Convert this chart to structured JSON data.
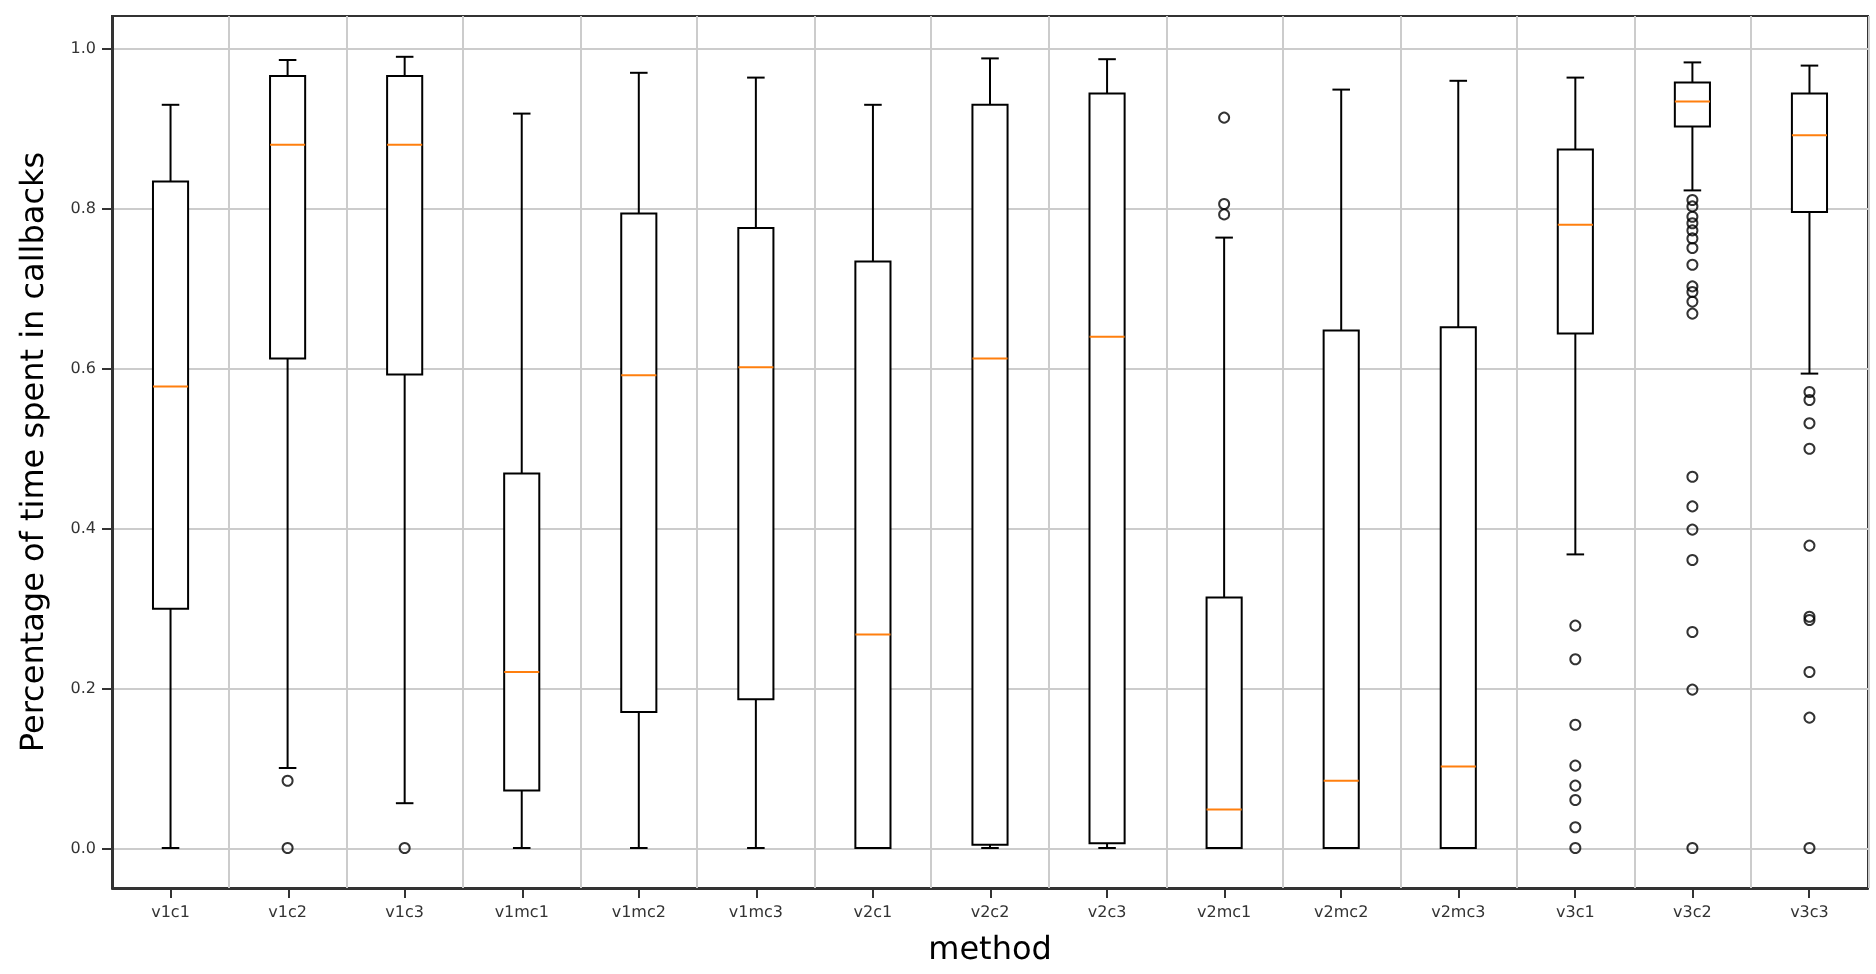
{
  "chart_data": {
    "type": "box",
    "xlabel": "method",
    "ylabel": "Percentage of time spent in callbacks",
    "categories": [
      "v1c1",
      "v1c2",
      "v1c3",
      "v1mc1",
      "v1mc2",
      "v1mc3",
      "v2c1",
      "v2c2",
      "v2c3",
      "v2mc1",
      "v2mc2",
      "v2mc3",
      "v3c1",
      "v3c2",
      "v3c3"
    ],
    "series": [
      {
        "color": "#000000",
        "boxes": [
          {
            "low": 0,
            "q1": 0.299,
            "median": 0.577,
            "q3": 0.833,
            "high": 0.929
          },
          {
            "low": 0.1,
            "q1": 0.612,
            "median": 0.879,
            "q3": 0.965,
            "high": 0.985,
            "outliers": [
              0.084,
              0
            ]
          },
          {
            "low": 0.056,
            "q1": 0.592,
            "median": 0.879,
            "q3": 0.965,
            "high": 0.989,
            "outliers": [
              0
            ]
          },
          {
            "low": 0,
            "q1": 0.072,
            "median": 0.22,
            "q3": 0.468,
            "high": 0.918
          },
          {
            "low": 0,
            "q1": 0.17,
            "median": 0.591,
            "q3": 0.793,
            "high": 0.969
          },
          {
            "low": 0,
            "q1": 0.186,
            "median": 0.601,
            "q3": 0.775,
            "high": 0.963
          },
          {
            "low": 0,
            "q1": 0,
            "median": 0.267,
            "q3": 0.733,
            "high": 0.929
          },
          {
            "low": 0,
            "q1": 0.004,
            "median": 0.612,
            "q3": 0.929,
            "high": 0.987
          },
          {
            "low": 0,
            "q1": 0.006,
            "median": 0.639,
            "q3": 0.943,
            "high": 0.986
          },
          {
            "low": 0,
            "q1": 0,
            "median": 0.048,
            "q3": 0.313,
            "high": 0.763,
            "outliers": [
              0.913,
              0.805,
              0.792
            ]
          },
          {
            "low": 0,
            "q1": 0,
            "median": 0.084,
            "q3": 0.647,
            "high": 0.948
          },
          {
            "low": 0,
            "q1": 0,
            "median": 0.102,
            "q3": 0.651,
            "high": 0.959
          },
          {
            "low": 0.367,
            "q1": 0.643,
            "median": 0.779,
            "q3": 0.873,
            "high": 0.963,
            "outliers": [
              0.278,
              0.236,
              0.154,
              0.103,
              0.078,
              0.06,
              0.026,
              0
            ]
          },
          {
            "low": 0.822,
            "q1": 0.902,
            "median": 0.933,
            "q3": 0.957,
            "high": 0.982,
            "outliers": [
              0.81,
              0.802,
              0.789,
              0.781,
              0.772,
              0.762,
              0.75,
              0.729,
              0.702,
              0.695,
              0.683,
              0.668,
              0.464,
              0.427,
              0.398,
              0.36,
              0.27,
              0.198,
              0
            ]
          },
          {
            "low": 0.593,
            "q1": 0.795,
            "median": 0.891,
            "q3": 0.943,
            "high": 0.978,
            "outliers": [
              0.57,
              0.56,
              0.531,
              0.499,
              0.378,
              0.289,
              0.285,
              0.22,
              0.163,
              0
            ]
          }
        ]
      }
    ],
    "ylim": [
      -0.05,
      1.04
    ],
    "yticks": [
      {
        "value": 0,
        "label": "0.0"
      },
      {
        "value": 0.2,
        "label": "0.2"
      },
      {
        "value": 0.4,
        "label": "0.4"
      },
      {
        "value": 0.6,
        "label": "0.6"
      },
      {
        "value": 0.8,
        "label": "0.8"
      },
      {
        "value": 1,
        "label": "1.0"
      }
    ],
    "grid": true
  }
}
